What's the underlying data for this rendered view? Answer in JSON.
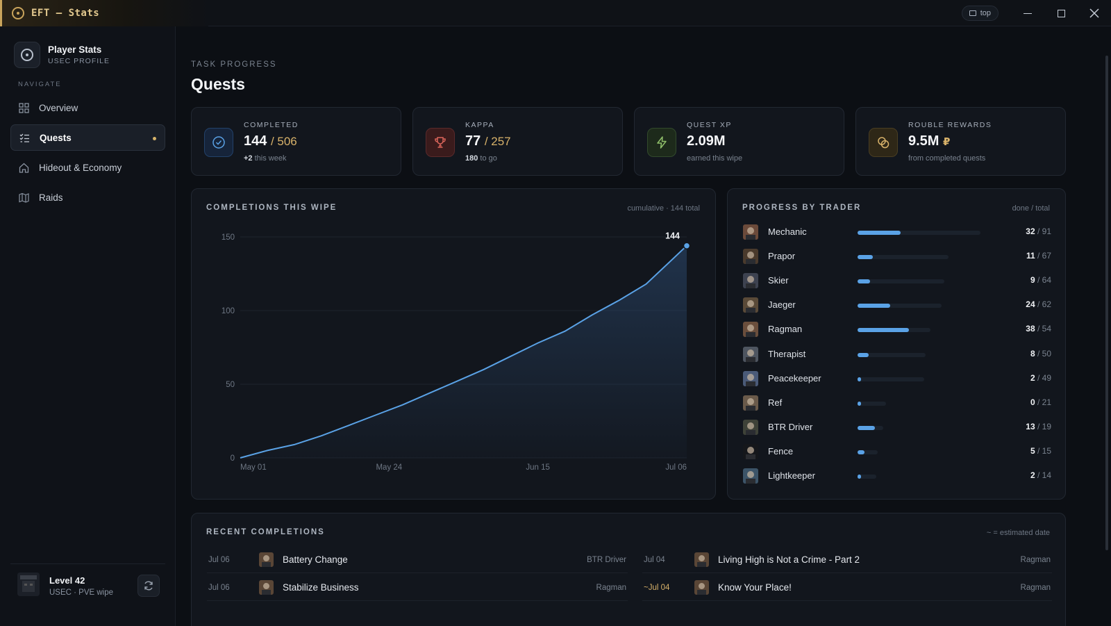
{
  "window": {
    "title": "EFT — Stats",
    "pin_label": "top",
    "controls": [
      "minimize",
      "maximize",
      "close"
    ]
  },
  "sidebar": {
    "profile": {
      "name": "Player Stats",
      "subtitle": "USEC PROFILE"
    },
    "nav_label": "NAVIGATE",
    "items": [
      {
        "label": "Overview",
        "icon": "grid-icon",
        "active": false
      },
      {
        "label": "Quests",
        "icon": "checklist-icon",
        "active": true
      },
      {
        "label": "Hideout & Economy",
        "icon": "home-icon",
        "active": false
      },
      {
        "label": "Raids",
        "icon": "map-icon",
        "active": false
      }
    ],
    "footer": {
      "level": "Level 42",
      "subtitle": "USEC · PVE wipe"
    }
  },
  "page": {
    "eyebrow": "TASK PROGRESS",
    "title": "Quests"
  },
  "stats": [
    {
      "label": "COMPLETED",
      "value": "144",
      "of": "/ 506",
      "sub_strong": "+2",
      "sub": "this week",
      "icon": "check-circle-icon",
      "accent": "#5aa2e6"
    },
    {
      "label": "KAPPA",
      "value": "77",
      "of": "/ 257",
      "sub_strong": "180",
      "sub": "to go",
      "icon": "trophy-icon",
      "accent": "#d9645a"
    },
    {
      "label": "QUEST XP",
      "value": "2.09M",
      "sub": "earned this wipe",
      "icon": "lightning-icon",
      "accent": "#8fbf6a"
    },
    {
      "label": "ROUBLE REWARDS",
      "value": "9.5M",
      "currency": "₽",
      "sub": "from completed quests",
      "icon": "coins-icon",
      "accent": "#d8b26a"
    }
  ],
  "completions": {
    "title": "COMPLETIONS THIS WIPE",
    "note": "cumulative · 144 total",
    "end_label": "144"
  },
  "chart_data": {
    "type": "area",
    "title": "COMPLETIONS THIS WIPE",
    "x_ticks": [
      "May 01",
      "May 24",
      "Jun 15",
      "Jul 06"
    ],
    "x_range": [
      "2024-05-01",
      "2024-07-06"
    ],
    "y_ticks": [
      0,
      50,
      100,
      150
    ],
    "ylim": [
      0,
      150
    ],
    "grid": true,
    "series": [
      {
        "points": [
          [
            "2024-05-01",
            0
          ],
          [
            "2024-05-05",
            5
          ],
          [
            "2024-05-09",
            9
          ],
          [
            "2024-05-13",
            15
          ],
          [
            "2024-05-17",
            22
          ],
          [
            "2024-05-21",
            29
          ],
          [
            "2024-05-25",
            36
          ],
          [
            "2024-05-29",
            44
          ],
          [
            "2024-06-02",
            52
          ],
          [
            "2024-06-06",
            60
          ],
          [
            "2024-06-10",
            69
          ],
          [
            "2024-06-14",
            78
          ],
          [
            "2024-06-18",
            86
          ],
          [
            "2024-06-22",
            97
          ],
          [
            "2024-06-26",
            107
          ],
          [
            "2024-06-30",
            118
          ],
          [
            "2024-07-03",
            131
          ],
          [
            "2024-07-06",
            144
          ]
        ]
      }
    ],
    "annotations": [
      {
        "date": "2024-07-06",
        "value": 144,
        "label": "144"
      }
    ]
  },
  "traders": {
    "title": "PROGRESS BY TRADER",
    "note": "done / total",
    "rows": [
      {
        "name": "Mechanic",
        "done": "32",
        "total": "/ 91",
        "d": 32,
        "t": 91
      },
      {
        "name": "Prapor",
        "done": "11",
        "total": "/ 67",
        "d": 11,
        "t": 67
      },
      {
        "name": "Skier",
        "done": "9",
        "total": "/ 64",
        "d": 9,
        "t": 64
      },
      {
        "name": "Jaeger",
        "done": "24",
        "total": "/ 62",
        "d": 24,
        "t": 62
      },
      {
        "name": "Ragman",
        "done": "38",
        "total": "/ 54",
        "d": 38,
        "t": 54
      },
      {
        "name": "Therapist",
        "done": "8",
        "total": "/ 50",
        "d": 8,
        "t": 50
      },
      {
        "name": "Peacekeeper",
        "done": "2",
        "total": "/ 49",
        "d": 2,
        "t": 49
      },
      {
        "name": "Ref",
        "done": "0",
        "total": "/ 21",
        "d": 0,
        "t": 21
      },
      {
        "name": "BTR Driver",
        "done": "13",
        "total": "/ 19",
        "d": 13,
        "t": 19
      },
      {
        "name": "Fence",
        "done": "5",
        "total": "/ 15",
        "d": 5,
        "t": 15
      },
      {
        "name": "Lightkeeper",
        "done": "2",
        "total": "/ 14",
        "d": 2,
        "t": 14
      }
    ]
  },
  "recent": {
    "title": "RECENT COMPLETIONS",
    "note": "~ = estimated date",
    "left": [
      {
        "date": "Jul 06",
        "name": "Battery Change",
        "trader": "BTR Driver"
      },
      {
        "date": "Jul 06",
        "name": "Stabilize Business",
        "trader": "Ragman"
      }
    ],
    "right": [
      {
        "date": "Jul 04",
        "name": "Living High is Not a Crime - Part 2",
        "trader": "Ragman"
      },
      {
        "date": "~Jul 04",
        "name": "Know Your Place!",
        "trader": "Ragman"
      }
    ]
  }
}
